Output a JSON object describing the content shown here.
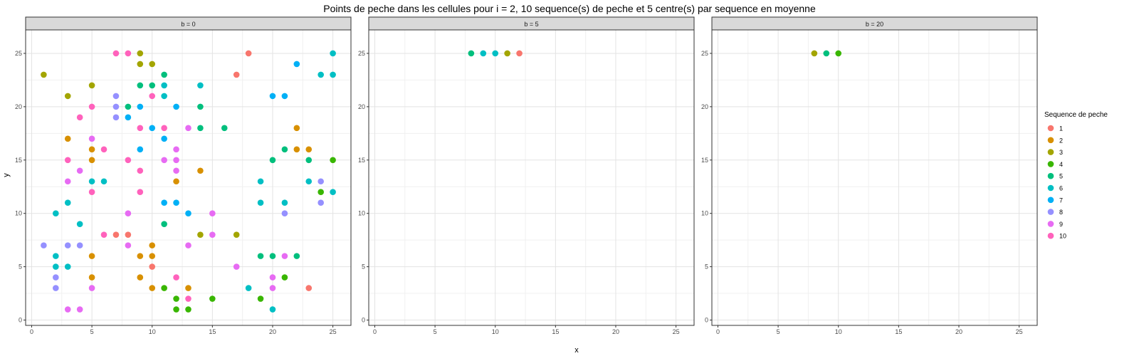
{
  "chart_data": {
    "type": "scatter",
    "title": "Points de peche dans les cellules pour i = 2, 10 sequence(s) de peche et 5 centre(s) par sequence en moyenne",
    "xlabel": "x",
    "ylabel": "y",
    "xlim": [
      -0.5,
      26.5
    ],
    "ylim": [
      -0.5,
      27.2
    ],
    "x_ticks": [
      0,
      5,
      10,
      15,
      20,
      25
    ],
    "y_ticks": [
      0,
      5,
      10,
      15,
      20,
      25
    ],
    "grid": true,
    "legend": {
      "title": "Sequence de peche",
      "position": "right",
      "entries": [
        "1",
        "2",
        "3",
        "4",
        "5",
        "6",
        "7",
        "8",
        "9",
        "10"
      ]
    },
    "colors": {
      "1": "#F8766D",
      "2": "#D89000",
      "3": "#A3A500",
      "4": "#39B600",
      "5": "#00BF7D",
      "6": "#00BFC4",
      "7": "#00B0F6",
      "8": "#9590FF",
      "9": "#E76BF3",
      "10": "#FF62BC"
    },
    "panels": [
      {
        "label": "b = 0",
        "points": [
          {
            "x": 1,
            "y": 23,
            "s": 3
          },
          {
            "x": 1,
            "y": 7,
            "s": 8
          },
          {
            "x": 2,
            "y": 10,
            "s": 6
          },
          {
            "x": 2,
            "y": 6,
            "s": 6
          },
          {
            "x": 2,
            "y": 5,
            "s": 6
          },
          {
            "x": 2,
            "y": 4,
            "s": 8
          },
          {
            "x": 2,
            "y": 3,
            "s": 8
          },
          {
            "x": 3,
            "y": 21,
            "s": 3
          },
          {
            "x": 3,
            "y": 17,
            "s": 2
          },
          {
            "x": 3,
            "y": 15,
            "s": 10
          },
          {
            "x": 3,
            "y": 13,
            "s": 9
          },
          {
            "x": 3,
            "y": 11,
            "s": 6
          },
          {
            "x": 3,
            "y": 7,
            "s": 8
          },
          {
            "x": 3,
            "y": 5,
            "s": 6
          },
          {
            "x": 3,
            "y": 1,
            "s": 9
          },
          {
            "x": 4,
            "y": 19,
            "s": 10
          },
          {
            "x": 4,
            "y": 14,
            "s": 9
          },
          {
            "x": 4,
            "y": 9,
            "s": 6
          },
          {
            "x": 4,
            "y": 7,
            "s": 8
          },
          {
            "x": 4,
            "y": 1,
            "s": 9
          },
          {
            "x": 5,
            "y": 22,
            "s": 3
          },
          {
            "x": 5,
            "y": 20,
            "s": 10
          },
          {
            "x": 5,
            "y": 17,
            "s": 9
          },
          {
            "x": 5,
            "y": 16,
            "s": 2
          },
          {
            "x": 5,
            "y": 15,
            "s": 2
          },
          {
            "x": 5,
            "y": 13,
            "s": 6
          },
          {
            "x": 5,
            "y": 12,
            "s": 10
          },
          {
            "x": 5,
            "y": 6,
            "s": 2
          },
          {
            "x": 5,
            "y": 4,
            "s": 2
          },
          {
            "x": 5,
            "y": 3,
            "s": 9
          },
          {
            "x": 6,
            "y": 16,
            "s": 10
          },
          {
            "x": 6,
            "y": 13,
            "s": 6
          },
          {
            "x": 6,
            "y": 8,
            "s": 10
          },
          {
            "x": 7,
            "y": 25,
            "s": 10
          },
          {
            "x": 7,
            "y": 21,
            "s": 8
          },
          {
            "x": 7,
            "y": 20,
            "s": 8
          },
          {
            "x": 7,
            "y": 19,
            "s": 8
          },
          {
            "x": 7,
            "y": 8,
            "s": 1
          },
          {
            "x": 8,
            "y": 25,
            "s": 10
          },
          {
            "x": 8,
            "y": 20,
            "s": 5
          },
          {
            "x": 8,
            "y": 19,
            "s": 7
          },
          {
            "x": 8,
            "y": 15,
            "s": 10
          },
          {
            "x": 8,
            "y": 10,
            "s": 9
          },
          {
            "x": 8,
            "y": 8,
            "s": 1
          },
          {
            "x": 8,
            "y": 7,
            "s": 9
          },
          {
            "x": 9,
            "y": 25,
            "s": 3
          },
          {
            "x": 9,
            "y": 24,
            "s": 3
          },
          {
            "x": 9,
            "y": 22,
            "s": 5
          },
          {
            "x": 9,
            "y": 20,
            "s": 7
          },
          {
            "x": 9,
            "y": 18,
            "s": 10
          },
          {
            "x": 9,
            "y": 16,
            "s": 7
          },
          {
            "x": 9,
            "y": 14,
            "s": 10
          },
          {
            "x": 9,
            "y": 12,
            "s": 10
          },
          {
            "x": 9,
            "y": 6,
            "s": 2
          },
          {
            "x": 9,
            "y": 4,
            "s": 2
          },
          {
            "x": 10,
            "y": 24,
            "s": 3
          },
          {
            "x": 10,
            "y": 22,
            "s": 5
          },
          {
            "x": 10,
            "y": 21,
            "s": 10
          },
          {
            "x": 10,
            "y": 18,
            "s": 7
          },
          {
            "x": 10,
            "y": 7,
            "s": 2
          },
          {
            "x": 10,
            "y": 6,
            "s": 2
          },
          {
            "x": 10,
            "y": 5,
            "s": 1
          },
          {
            "x": 10,
            "y": 3,
            "s": 2
          },
          {
            "x": 11,
            "y": 23,
            "s": 5
          },
          {
            "x": 11,
            "y": 22,
            "s": 6
          },
          {
            "x": 11,
            "y": 21,
            "s": 6
          },
          {
            "x": 11,
            "y": 18,
            "s": 10
          },
          {
            "x": 11,
            "y": 17,
            "s": 7
          },
          {
            "x": 11,
            "y": 15,
            "s": 9
          },
          {
            "x": 11,
            "y": 11,
            "s": 7
          },
          {
            "x": 11,
            "y": 9,
            "s": 5
          },
          {
            "x": 11,
            "y": 3,
            "s": 4
          },
          {
            "x": 12,
            "y": 20,
            "s": 7
          },
          {
            "x": 12,
            "y": 16,
            "s": 9
          },
          {
            "x": 12,
            "y": 15,
            "s": 9
          },
          {
            "x": 12,
            "y": 14,
            "s": 9
          },
          {
            "x": 12,
            "y": 13,
            "s": 2
          },
          {
            "x": 12,
            "y": 11,
            "s": 7
          },
          {
            "x": 12,
            "y": 4,
            "s": 10
          },
          {
            "x": 12,
            "y": 2,
            "s": 4
          },
          {
            "x": 12,
            "y": 1,
            "s": 4
          },
          {
            "x": 13,
            "y": 18,
            "s": 9
          },
          {
            "x": 13,
            "y": 10,
            "s": 7
          },
          {
            "x": 13,
            "y": 7,
            "s": 9
          },
          {
            "x": 13,
            "y": 3,
            "s": 2
          },
          {
            "x": 13,
            "y": 2,
            "s": 10
          },
          {
            "x": 13,
            "y": 1,
            "s": 4
          },
          {
            "x": 14,
            "y": 22,
            "s": 6
          },
          {
            "x": 14,
            "y": 20,
            "s": 5
          },
          {
            "x": 14,
            "y": 18,
            "s": 5
          },
          {
            "x": 14,
            "y": 14,
            "s": 2
          },
          {
            "x": 14,
            "y": 8,
            "s": 3
          },
          {
            "x": 15,
            "y": 10,
            "s": 9
          },
          {
            "x": 15,
            "y": 8,
            "s": 9
          },
          {
            "x": 15,
            "y": 2,
            "s": 4
          },
          {
            "x": 16,
            "y": 18,
            "s": 5
          },
          {
            "x": 17,
            "y": 23,
            "s": 1
          },
          {
            "x": 17,
            "y": 8,
            "s": 3
          },
          {
            "x": 17,
            "y": 5,
            "s": 9
          },
          {
            "x": 18,
            "y": 25,
            "s": 1
          },
          {
            "x": 18,
            "y": 3,
            "s": 6
          },
          {
            "x": 19,
            "y": 13,
            "s": 6
          },
          {
            "x": 19,
            "y": 11,
            "s": 6
          },
          {
            "x": 19,
            "y": 6,
            "s": 5
          },
          {
            "x": 19,
            "y": 2,
            "s": 4
          },
          {
            "x": 20,
            "y": 21,
            "s": 7
          },
          {
            "x": 20,
            "y": 15,
            "s": 5
          },
          {
            "x": 20,
            "y": 6,
            "s": 5
          },
          {
            "x": 20,
            "y": 4,
            "s": 9
          },
          {
            "x": 20,
            "y": 3,
            "s": 9
          },
          {
            "x": 20,
            "y": 1,
            "s": 6
          },
          {
            "x": 21,
            "y": 21,
            "s": 7
          },
          {
            "x": 21,
            "y": 16,
            "s": 5
          },
          {
            "x": 21,
            "y": 11,
            "s": 6
          },
          {
            "x": 21,
            "y": 10,
            "s": 8
          },
          {
            "x": 21,
            "y": 6,
            "s": 9
          },
          {
            "x": 21,
            "y": 4,
            "s": 4
          },
          {
            "x": 22,
            "y": 24,
            "s": 7
          },
          {
            "x": 22,
            "y": 18,
            "s": 2
          },
          {
            "x": 22,
            "y": 16,
            "s": 2
          },
          {
            "x": 22,
            "y": 6,
            "s": 5
          },
          {
            "x": 23,
            "y": 16,
            "s": 2
          },
          {
            "x": 23,
            "y": 15,
            "s": 5
          },
          {
            "x": 23,
            "y": 13,
            "s": 6
          },
          {
            "x": 23,
            "y": 3,
            "s": 1
          },
          {
            "x": 24,
            "y": 23,
            "s": 6
          },
          {
            "x": 24,
            "y": 13,
            "s": 8
          },
          {
            "x": 24,
            "y": 12,
            "s": 4
          },
          {
            "x": 24,
            "y": 11,
            "s": 8
          },
          {
            "x": 25,
            "y": 25,
            "s": 6
          },
          {
            "x": 25,
            "y": 23,
            "s": 6
          },
          {
            "x": 25,
            "y": 15,
            "s": 4
          },
          {
            "x": 25,
            "y": 12,
            "s": 6
          }
        ]
      },
      {
        "label": "b = 5",
        "points": [
          {
            "x": 8,
            "y": 25,
            "s": 5
          },
          {
            "x": 9,
            "y": 25,
            "s": 6
          },
          {
            "x": 10,
            "y": 25,
            "s": 6
          },
          {
            "x": 11,
            "y": 25,
            "s": 3
          },
          {
            "x": 12,
            "y": 25,
            "s": 1
          }
        ]
      },
      {
        "label": "b = 20",
        "points": [
          {
            "x": 8,
            "y": 25,
            "s": 3
          },
          {
            "x": 9,
            "y": 25,
            "s": 5
          },
          {
            "x": 10,
            "y": 25,
            "s": 4
          }
        ]
      }
    ]
  }
}
